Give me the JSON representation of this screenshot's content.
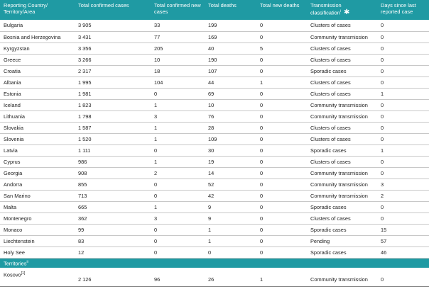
{
  "table": {
    "columns": [
      "Reporting Country/ Territory/Area",
      "Total confirmed cases",
      "Total confirmed new cases",
      "Total deaths",
      "Total new deaths",
      "Transmission classification",
      "Days since last reported case"
    ],
    "transmission_note": "i",
    "transmission_symbol": "✱",
    "rows": [
      [
        "Bulgaria",
        "3 905",
        "33",
        "199",
        "0",
        "Clusters of cases",
        "0"
      ],
      [
        "Bosnia and Herzegovina",
        "3 431",
        "77",
        "169",
        "0",
        "Community transmission",
        "0"
      ],
      [
        "Kyrgyzstan",
        "3 356",
        "205",
        "40",
        "5",
        "Clusters of cases",
        "0"
      ],
      [
        "Greece",
        "3 266",
        "10",
        "190",
        "0",
        "Clusters of cases",
        "0"
      ],
      [
        "Croatia",
        "2 317",
        "18",
        "107",
        "0",
        "Sporadic cases",
        "0"
      ],
      [
        "Albania",
        "1 995",
        "104",
        "44",
        "1",
        "Clusters of cases",
        "0"
      ],
      [
        "Estonia",
        "1 981",
        "0",
        "69",
        "0",
        "Clusters of cases",
        "1"
      ],
      [
        "Iceland",
        "1 823",
        "1",
        "10",
        "0",
        "Community transmission",
        "0"
      ],
      [
        "Lithuania",
        "1 798",
        "3",
        "76",
        "0",
        "Community transmission",
        "0"
      ],
      [
        "Slovakia",
        "1 587",
        "1",
        "28",
        "0",
        "Clusters of cases",
        "0"
      ],
      [
        "Slovenia",
        "1 520",
        "1",
        "109",
        "0",
        "Clusters of cases",
        "0"
      ],
      [
        "Latvia",
        "1 111",
        "0",
        "30",
        "0",
        "Sporadic cases",
        "1"
      ],
      [
        "Cyprus",
        "986",
        "1",
        "19",
        "0",
        "Clusters of cases",
        "0"
      ],
      [
        "Georgia",
        "908",
        "2",
        "14",
        "0",
        "Community transmission",
        "0"
      ],
      [
        "Andorra",
        "855",
        "0",
        "52",
        "0",
        "Community transmission",
        "3"
      ],
      [
        "San Marino",
        "713",
        "0",
        "42",
        "0",
        "Community transmission",
        "2"
      ],
      [
        "Malta",
        "665",
        "1",
        "9",
        "0",
        "Sporadic cases",
        "0"
      ],
      [
        "Montenegro",
        "362",
        "3",
        "9",
        "0",
        "Clusters of cases",
        "0"
      ],
      [
        "Monaco",
        "99",
        "0",
        "1",
        "0",
        "Sporadic cases",
        "15"
      ],
      [
        "Liechtenstein",
        "83",
        "0",
        "1",
        "0",
        "Pending",
        "57"
      ],
      [
        "Holy See",
        "12",
        "0",
        "0",
        "0",
        "Sporadic cases",
        "46"
      ]
    ],
    "territories_label": "Territories",
    "territories_note": "ii",
    "territory_rows": [
      {
        "name": "Kosovo",
        "note": "[1]",
        "values": [
          "2 126",
          "96",
          "26",
          "1",
          "Community transmission",
          "0"
        ]
      }
    ]
  }
}
